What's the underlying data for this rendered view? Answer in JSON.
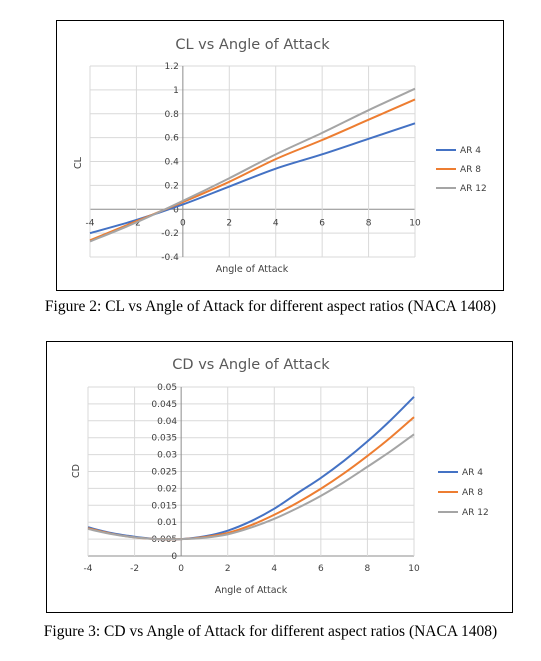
{
  "figure1": {
    "caption": "Figure 2: CL vs Angle of Attack for different aspect ratios (NACA 1408)"
  },
  "figure2": {
    "caption": "Figure 3: CD vs Angle of Attack for different aspect ratios (NACA 1408)"
  },
  "colors": {
    "AR 4": "#4472C4",
    "AR 8": "#ED7D31",
    "AR 12": "#A5A5A5"
  },
  "chart_data": [
    {
      "type": "line",
      "title": "CL vs Angle of Attack",
      "xlabel": "Angle of Attack",
      "ylabel": "CL",
      "xlim": [
        -4,
        10
      ],
      "ylim": [
        -0.4,
        1.2
      ],
      "xticks": [
        -4,
        -2,
        0,
        2,
        4,
        6,
        8,
        10
      ],
      "yticks": [
        -0.4,
        -0.2,
        0,
        0.2,
        0.4,
        0.6,
        0.8,
        1,
        1.2
      ],
      "grid": true,
      "legend_position": "right",
      "x": [
        -4,
        -2,
        0,
        2,
        4,
        6,
        8,
        10
      ],
      "series": [
        {
          "name": "AR 4",
          "values": [
            -0.2,
            -0.09,
            0.04,
            0.19,
            0.34,
            0.46,
            0.59,
            0.72
          ]
        },
        {
          "name": "AR 8",
          "values": [
            -0.26,
            -0.1,
            0.06,
            0.23,
            0.42,
            0.58,
            0.75,
            0.92
          ]
        },
        {
          "name": "AR 12",
          "values": [
            -0.27,
            -0.11,
            0.07,
            0.26,
            0.46,
            0.64,
            0.83,
            1.01
          ]
        }
      ]
    },
    {
      "type": "line",
      "title": "CD vs Angle of Attack",
      "xlabel": "Angle of Attack",
      "ylabel": "CD",
      "xlim": [
        -4,
        10
      ],
      "ylim": [
        0,
        0.05
      ],
      "xticks": [
        -4,
        -2,
        0,
        2,
        4,
        6,
        8,
        10
      ],
      "yticks": [
        0,
        0.005,
        0.01,
        0.015,
        0.02,
        0.025,
        0.03,
        0.035,
        0.04,
        0.045,
        0.05
      ],
      "grid": true,
      "legend_position": "right",
      "x": [
        -4,
        -3,
        -2,
        -1,
        0,
        1,
        2,
        3,
        4,
        5,
        6,
        7,
        8,
        9,
        10
      ],
      "series": [
        {
          "name": "AR 4",
          "values": [
            0.0085,
            0.0068,
            0.0057,
            0.005,
            0.005,
            0.0058,
            0.0075,
            0.0103,
            0.014,
            0.0186,
            0.0231,
            0.0282,
            0.0339,
            0.0402,
            0.0471
          ]
        },
        {
          "name": "AR 8",
          "values": [
            0.0082,
            0.0066,
            0.0055,
            0.005,
            0.005,
            0.0056,
            0.0068,
            0.0091,
            0.0122,
            0.0158,
            0.0199,
            0.0245,
            0.0296,
            0.0351,
            0.0411
          ]
        },
        {
          "name": "AR 12",
          "values": [
            0.008,
            0.0065,
            0.0055,
            0.005,
            0.005,
            0.0054,
            0.0064,
            0.0084,
            0.011,
            0.0142,
            0.0178,
            0.0219,
            0.0264,
            0.031,
            0.036
          ]
        }
      ]
    }
  ]
}
